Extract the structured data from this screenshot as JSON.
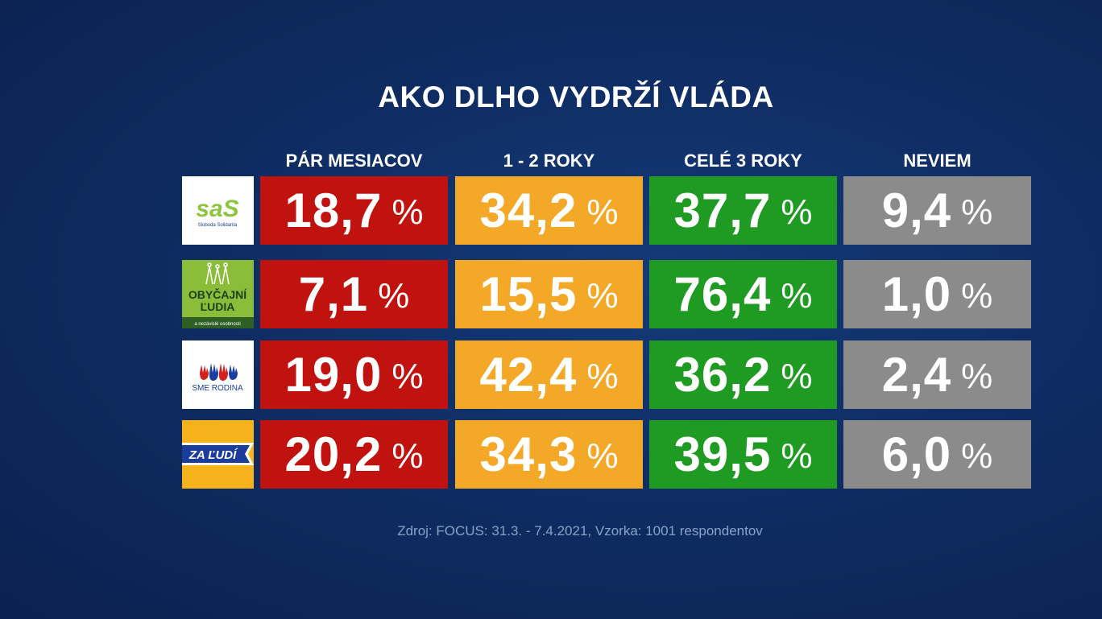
{
  "title": "AKO DLHO VYDRŽÍ VLÁDA",
  "source": "Zdroj: FOCUS: 31.3. - 7.4.2021, Vzorka: 1001 respondentov",
  "colors": {
    "par_mesiacov": "#c0120f",
    "roky_1_2": "#f3a827",
    "cele_3_roky": "#1f9a22",
    "neviem": "#8b8b8b",
    "background": "#0f2d63"
  },
  "columns": [
    "PÁR MESIACOV",
    "1 - 2 ROKY",
    "CELÉ 3 ROKY",
    "NEVIEM"
  ],
  "rows": [
    {
      "party": "SaS",
      "logo": {
        "type": "sas-logo",
        "text": "saS",
        "subtext": "Sloboda Solidarita"
      },
      "cells": [
        {
          "value": "18,7",
          "unit": "%"
        },
        {
          "value": "34,2",
          "unit": "%"
        },
        {
          "value": "37,7",
          "unit": "%"
        },
        {
          "value": "9,4",
          "unit": "%"
        }
      ]
    },
    {
      "party": "OĽaNO",
      "logo": {
        "type": "olano-logo",
        "text_line1": "OBYČAJNÍ",
        "text_line2": "ĽUDIA",
        "subtext": "a nezávislé osobnosti"
      },
      "cells": [
        {
          "value": "7,1",
          "unit": "%"
        },
        {
          "value": "15,5",
          "unit": "%"
        },
        {
          "value": "76,4",
          "unit": "%"
        },
        {
          "value": "1,0",
          "unit": "%"
        }
      ]
    },
    {
      "party": "Sme rodina",
      "logo": {
        "type": "sme-rodina-logo",
        "text": "SME RODINA"
      },
      "cells": [
        {
          "value": "19,0",
          "unit": "%"
        },
        {
          "value": "42,4",
          "unit": "%"
        },
        {
          "value": "36,2",
          "unit": "%"
        },
        {
          "value": "2,4",
          "unit": "%"
        }
      ]
    },
    {
      "party": "Za ľudí",
      "logo": {
        "type": "za-ludi-logo",
        "text": "ZA ĽUDÍ"
      },
      "cells": [
        {
          "value": "20,2",
          "unit": "%"
        },
        {
          "value": "34,3",
          "unit": "%"
        },
        {
          "value": "39,5",
          "unit": "%"
        },
        {
          "value": "6,0",
          "unit": "%"
        }
      ]
    }
  ],
  "chart_data": {
    "type": "table",
    "title": "AKO DLHO VYDRŽÍ VLÁDA",
    "columns": [
      "PÁR MESIACOV",
      "1 - 2 ROKY",
      "CELÉ 3 ROKY",
      "NEVIEM"
    ],
    "unit": "%",
    "rows": [
      {
        "values": [
          18.7,
          34.2,
          37.7,
          9.4
        ]
      },
      {
        "values": [
          7.1,
          15.5,
          76.4,
          1.0
        ]
      },
      {
        "values": [
          19.0,
          42.4,
          36.2,
          2.4
        ]
      },
      {
        "values": [
          20.2,
          34.3,
          39.5,
          6.0
        ]
      }
    ]
  }
}
